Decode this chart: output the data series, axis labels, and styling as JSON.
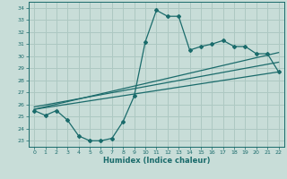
{
  "title": "",
  "xlabel": "Humidex (Indice chaleur)",
  "bg_color": "#c8ddd8",
  "grid_color": "#adc8c2",
  "line_color": "#1a6b6b",
  "xlim": [
    -0.5,
    22.5
  ],
  "ylim": [
    22.5,
    34.5
  ],
  "xticks": [
    0,
    1,
    2,
    3,
    4,
    5,
    6,
    7,
    8,
    9,
    10,
    11,
    12,
    13,
    14,
    15,
    16,
    17,
    18,
    19,
    20,
    21,
    22
  ],
  "yticks": [
    23,
    24,
    25,
    26,
    27,
    28,
    29,
    30,
    31,
    32,
    33,
    34
  ],
  "wavy_x": [
    0,
    1,
    2,
    3,
    4,
    5,
    6,
    7,
    8,
    9,
    10,
    11,
    12,
    13,
    14,
    15,
    16,
    17,
    18,
    19,
    20,
    21,
    22
  ],
  "wavy_y": [
    25.5,
    25.1,
    25.5,
    24.7,
    23.4,
    23.0,
    23.0,
    23.2,
    24.6,
    26.7,
    31.2,
    33.8,
    33.3,
    33.3,
    30.5,
    30.8,
    31.0,
    31.3,
    30.8,
    30.8,
    30.2,
    30.2,
    28.7
  ],
  "trend1_x": [
    0,
    22
  ],
  "trend1_y": [
    25.6,
    30.3
  ],
  "trend2_x": [
    0,
    22
  ],
  "trend2_y": [
    25.6,
    28.7
  ],
  "trend3_x": [
    0,
    22
  ],
  "trend3_y": [
    25.8,
    29.5
  ]
}
